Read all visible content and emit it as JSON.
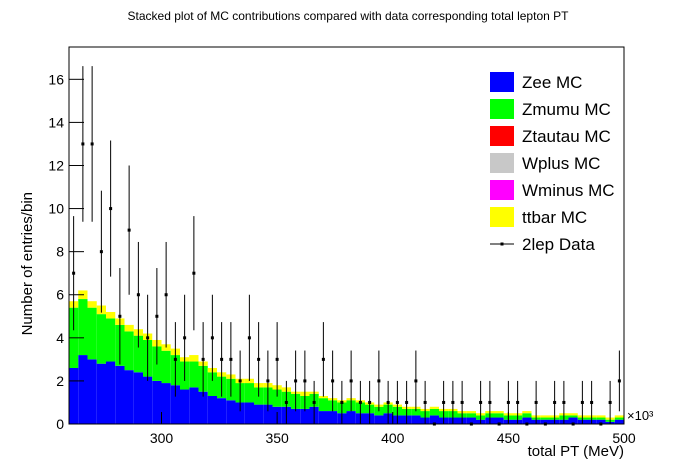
{
  "chart_data": {
    "type": "stacked-histogram",
    "title": "Stacked plot of MC contributions compared with data corresponding total lepton PT",
    "x_label": "total PT (MeV)",
    "y_label": "Number of entries/bin",
    "x_multiplier": "×10³",
    "xlim": [
      260,
      500
    ],
    "ylim": [
      0,
      17.5
    ],
    "xticks": [
      300,
      350,
      400,
      450,
      500
    ],
    "yticks": [
      0,
      2,
      4,
      6,
      8,
      10,
      12,
      14,
      16
    ],
    "legend": "top-right",
    "bins": [
      260,
      264,
      268,
      272,
      276,
      280,
      284,
      288,
      292,
      296,
      300,
      304,
      308,
      312,
      316,
      320,
      324,
      328,
      332,
      336,
      340,
      344,
      348,
      352,
      356,
      360,
      364,
      368,
      372,
      376,
      380,
      384,
      388,
      392,
      396,
      400,
      404,
      408,
      412,
      416,
      420,
      424,
      428,
      432,
      436,
      440,
      444,
      448,
      452,
      456,
      460,
      464,
      468,
      472,
      476,
      480,
      484,
      488,
      492,
      496,
      500
    ],
    "series": [
      {
        "name": "Zee MC",
        "color": "#0000ff",
        "values": [
          2.6,
          3.2,
          3.0,
          2.8,
          2.9,
          2.7,
          2.5,
          2.4,
          2.2,
          2.0,
          1.9,
          1.8,
          1.6,
          1.7,
          1.5,
          1.3,
          1.2,
          1.1,
          1.0,
          1.0,
          0.9,
          0.9,
          0.8,
          0.8,
          0.7,
          0.7,
          0.8,
          0.6,
          0.6,
          0.5,
          0.6,
          0.5,
          0.5,
          0.4,
          0.5,
          0.4,
          0.4,
          0.4,
          0.3,
          0.4,
          0.3,
          0.3,
          0.3,
          0.3,
          0.2,
          0.3,
          0.3,
          0.2,
          0.2,
          0.3,
          0.2,
          0.2,
          0.2,
          0.2,
          0.3,
          0.2,
          0.2,
          0.2,
          0.1,
          0.2
        ]
      },
      {
        "name": "Zmumu MC",
        "color": "#00ff00",
        "values": [
          2.8,
          2.6,
          2.4,
          2.3,
          2.0,
          1.9,
          1.8,
          1.7,
          1.7,
          1.6,
          1.5,
          1.4,
          1.3,
          1.2,
          1.2,
          1.1,
          1.0,
          1.0,
          0.9,
          0.9,
          0.8,
          0.8,
          0.8,
          0.7,
          0.7,
          0.6,
          0.6,
          0.6,
          0.5,
          0.5,
          0.5,
          0.5,
          0.4,
          0.4,
          0.4,
          0.4,
          0.3,
          0.3,
          0.3,
          0.3,
          0.3,
          0.3,
          0.2,
          0.2,
          0.2,
          0.2,
          0.2,
          0.2,
          0.2,
          0.2,
          0.1,
          0.1,
          0.1,
          0.2,
          0.1,
          0.1,
          0.1,
          0.1,
          0.1,
          0.1
        ]
      },
      {
        "name": "Ztautau MC",
        "color": "#ff0000",
        "values": [
          0,
          0,
          0,
          0,
          0,
          0,
          0,
          0,
          0,
          0,
          0,
          0,
          0,
          0,
          0,
          0,
          0,
          0,
          0,
          0,
          0,
          0,
          0,
          0,
          0,
          0,
          0,
          0,
          0,
          0,
          0,
          0,
          0,
          0,
          0,
          0,
          0,
          0,
          0,
          0,
          0,
          0,
          0,
          0,
          0,
          0,
          0,
          0,
          0,
          0,
          0,
          0,
          0,
          0,
          0,
          0,
          0,
          0,
          0,
          0
        ]
      },
      {
        "name": "Wplus MC",
        "color": "#c8c8c8",
        "values": [
          0,
          0,
          0,
          0,
          0,
          0,
          0,
          0,
          0,
          0,
          0,
          0,
          0,
          0,
          0,
          0,
          0,
          0,
          0,
          0,
          0,
          0,
          0,
          0,
          0,
          0,
          0,
          0,
          0,
          0,
          0,
          0,
          0,
          0,
          0,
          0,
          0,
          0,
          0,
          0,
          0,
          0,
          0,
          0,
          0,
          0,
          0,
          0,
          0,
          0,
          0,
          0,
          0,
          0,
          0,
          0,
          0,
          0,
          0,
          0
        ]
      },
      {
        "name": "Wminus MC",
        "color": "#ff00ff",
        "values": [
          0,
          0,
          0,
          0,
          0,
          0,
          0,
          0,
          0,
          0,
          0,
          0,
          0,
          0,
          0,
          0,
          0,
          0,
          0,
          0,
          0,
          0,
          0,
          0,
          0,
          0,
          0,
          0,
          0,
          0,
          0,
          0,
          0,
          0,
          0,
          0,
          0,
          0,
          0,
          0,
          0,
          0,
          0,
          0,
          0,
          0,
          0,
          0,
          0,
          0,
          0,
          0,
          0,
          0,
          0,
          0,
          0,
          0,
          0,
          0
        ]
      },
      {
        "name": "ttbar MC",
        "color": "#ffff00",
        "values": [
          0.3,
          0.4,
          0.3,
          0.4,
          0.3,
          0.3,
          0.3,
          0.3,
          0.3,
          0.3,
          0.3,
          0.3,
          0.2,
          0.3,
          0.2,
          0.2,
          0.2,
          0.2,
          0.2,
          0.2,
          0.2,
          0.2,
          0.2,
          0.2,
          0.1,
          0.2,
          0.1,
          0.1,
          0.1,
          0.1,
          0.1,
          0.1,
          0.1,
          0.1,
          0.1,
          0.1,
          0.1,
          0.1,
          0.1,
          0.1,
          0.1,
          0.1,
          0.1,
          0.1,
          0.1,
          0.1,
          0.1,
          0.1,
          0.1,
          0.1,
          0.1,
          0.1,
          0.1,
          0.1,
          0.1,
          0.1,
          0.1,
          0.1,
          0.1,
          0.1
        ]
      }
    ],
    "data": {
      "name": "2lep Data",
      "color": "#000000",
      "values": [
        7,
        13,
        13,
        8,
        10,
        5,
        9,
        6,
        4,
        5,
        6,
        3,
        4,
        7,
        3,
        4,
        3,
        3,
        2,
        4,
        3,
        2,
        3,
        1,
        2,
        2,
        1,
        3,
        2,
        1,
        2,
        1,
        1,
        2,
        1,
        1,
        1,
        2,
        1,
        0,
        1,
        1,
        1,
        0,
        1,
        1,
        0,
        1,
        1,
        0,
        1,
        0,
        1,
        1,
        0,
        1,
        1,
        0,
        1,
        2
      ],
      "errors": [
        2.65,
        3.61,
        3.61,
        2.83,
        3.16,
        2.24,
        3,
        2.45,
        2,
        2.24,
        2.45,
        1.73,
        2,
        2.65,
        1.73,
        2,
        1.73,
        1.73,
        1.41,
        2,
        1.73,
        1.41,
        1.73,
        1,
        1.41,
        1.41,
        1,
        1.73,
        1.41,
        1,
        1.41,
        1,
        1,
        1.41,
        1,
        1,
        1,
        1.41,
        1,
        0,
        1,
        1,
        1,
        0,
        1,
        1,
        0,
        1,
        1,
        0,
        1,
        0,
        1,
        1,
        0,
        1,
        1,
        0,
        1,
        1.41
      ]
    }
  }
}
